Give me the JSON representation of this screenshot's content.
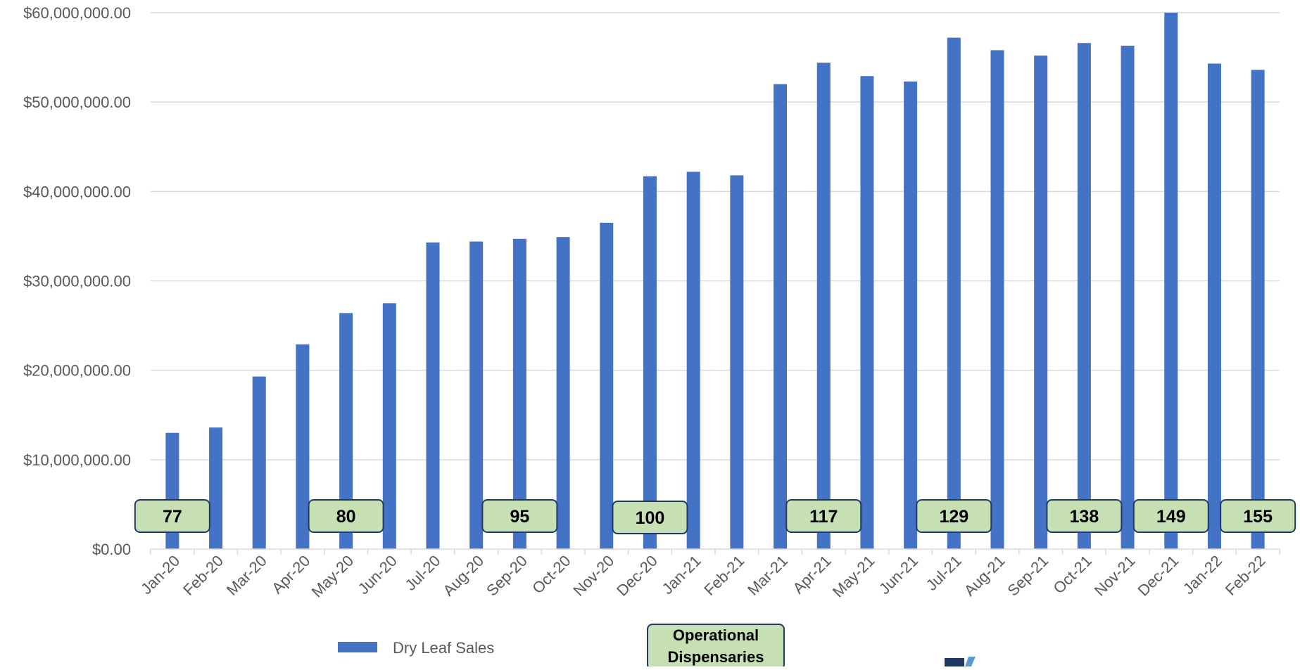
{
  "chart_data": {
    "type": "bar",
    "title": "",
    "xlabel": "",
    "ylabel": "",
    "ylim": [
      0,
      60000000
    ],
    "yticks": [
      0,
      10000000,
      20000000,
      30000000,
      40000000,
      50000000,
      60000000
    ],
    "ytick_labels": [
      "$0.00",
      "$10,000,000.00",
      "$20,000,000.00",
      "$30,000,000.00",
      "$40,000,000.00",
      "$50,000,000.00",
      "$60,000,000.00"
    ],
    "grid": true,
    "legend_position": "bottom-left",
    "categories": [
      "Jan-20",
      "Feb-20",
      "Mar-20",
      "Apr-20",
      "May-20",
      "Jun-20",
      "Jul-20",
      "Aug-20",
      "Sep-20",
      "Oct-20",
      "Nov-20",
      "Dec-20",
      "Jan-21",
      "Feb-21",
      "Mar-21",
      "Apr-21",
      "May-21",
      "Jun-21",
      "Jul-21",
      "Aug-21",
      "Sep-21",
      "Oct-21",
      "Nov-21",
      "Dec-21",
      "Jan-22",
      "Feb-22"
    ],
    "series": [
      {
        "name": "Dry Leaf Sales",
        "color": "#4472C4",
        "values": [
          13000000,
          13600000,
          19300000,
          22900000,
          26400000,
          27500000,
          34300000,
          34400000,
          34700000,
          34900000,
          36500000,
          41700000,
          42200000,
          41800000,
          52000000,
          54400000,
          52900000,
          52300000,
          57200000,
          55800000,
          55200000,
          56600000,
          56300000,
          60000000,
          54300000,
          53600000
        ]
      }
    ],
    "annotations": {
      "title": "Operational Dispensaries",
      "fill": "#C6E0B4",
      "border": "#1F3864",
      "labels": [
        {
          "category": "Jan-20",
          "value": "77"
        },
        {
          "category": "May-20",
          "value": "80"
        },
        {
          "category": "Sep-20",
          "value": "95"
        },
        {
          "category": "Dec-20",
          "value": "100"
        },
        {
          "category": "Apr-21",
          "value": "117"
        },
        {
          "category": "Jul-21",
          "value": "129"
        },
        {
          "category": "Oct-21",
          "value": "138"
        },
        {
          "category": "Dec-21",
          "value": "149"
        },
        {
          "category": "Feb-22",
          "value": "155"
        }
      ]
    }
  }
}
